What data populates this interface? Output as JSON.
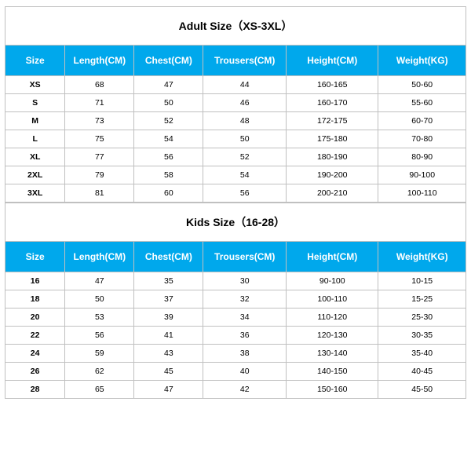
{
  "adult": {
    "title": "Adult Size（XS-3XL）",
    "columns": [
      "Size",
      "Length(CM)",
      "Chest(CM)",
      "Trousers(CM)",
      "Height(CM)",
      "Weight(KG)"
    ],
    "rows": [
      [
        "XS",
        "68",
        "47",
        "44",
        "160-165",
        "50-60"
      ],
      [
        "S",
        "71",
        "50",
        "46",
        "160-170",
        "55-60"
      ],
      [
        "M",
        "73",
        "52",
        "48",
        "172-175",
        "60-70"
      ],
      [
        "L",
        "75",
        "54",
        "50",
        "175-180",
        "70-80"
      ],
      [
        "XL",
        "77",
        "56",
        "52",
        "180-190",
        "80-90"
      ],
      [
        "2XL",
        "79",
        "58",
        "54",
        "190-200",
        "90-100"
      ],
      [
        "3XL",
        "81",
        "60",
        "56",
        "200-210",
        "100-110"
      ]
    ]
  },
  "kids": {
    "title": "Kids Size（16-28）",
    "columns": [
      "Size",
      "Length(CM)",
      "Chest(CM)",
      "Trousers(CM)",
      "Height(CM)",
      "Weight(KG)"
    ],
    "rows": [
      [
        "16",
        "47",
        "35",
        "30",
        "90-100",
        "10-15"
      ],
      [
        "18",
        "50",
        "37",
        "32",
        "100-110",
        "15-25"
      ],
      [
        "20",
        "53",
        "39",
        "34",
        "110-120",
        "25-30"
      ],
      [
        "22",
        "56",
        "41",
        "36",
        "120-130",
        "30-35"
      ],
      [
        "24",
        "59",
        "43",
        "38",
        "130-140",
        "35-40"
      ],
      [
        "26",
        "62",
        "45",
        "40",
        "140-150",
        "40-45"
      ],
      [
        "28",
        "65",
        "47",
        "42",
        "150-160",
        "45-50"
      ]
    ]
  },
  "style": {
    "header_bg": "#00a8ec",
    "header_fg": "#ffffff",
    "border_color": "#c0c0c0",
    "title_fontsize": 14,
    "header_fontsize": 12,
    "cell_fontsize": 10.5,
    "col_widths_pct": [
      13,
      15,
      15,
      18,
      20,
      19
    ]
  }
}
